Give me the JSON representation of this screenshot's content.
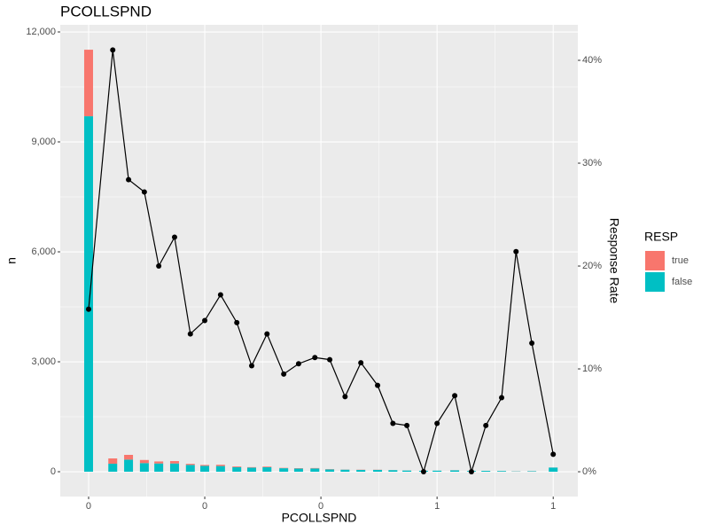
{
  "chart_data": {
    "type": "bar",
    "stacked": true,
    "title": "PCOLLSPND",
    "xlabel": "PCOLLSPND",
    "ylabel": "n",
    "y2label": "Response Rate",
    "legend_title": "RESP",
    "legend_position": "right",
    "grid": true,
    "x": [
      0,
      0.052,
      0.086,
      0.12,
      0.151,
      0.185,
      0.219,
      0.25,
      0.284,
      0.319,
      0.351,
      0.384,
      0.42,
      0.452,
      0.487,
      0.519,
      0.552,
      0.586,
      0.622,
      0.655,
      0.685,
      0.721,
      0.75,
      0.788,
      0.824,
      0.855,
      0.889,
      0.92,
      0.954,
      1.0
    ],
    "series": [
      {
        "name": "true",
        "color": "#F8766D",
        "values": [
          1815,
          145,
          130,
          85,
          55,
          65,
          30,
          25,
          35,
          20,
          13,
          18,
          10,
          10,
          11,
          8,
          4,
          6,
          5,
          2,
          2,
          0,
          1,
          3,
          0,
          1,
          1,
          3,
          2,
          2
        ]
      },
      {
        "name": "false",
        "color": "#00BFC4",
        "values": [
          9700,
          218,
          330,
          235,
          225,
          225,
          185,
          160,
          155,
          125,
          112,
          122,
          95,
          85,
          89,
          62,
          56,
          49,
          50,
          43,
          33,
          25,
          29,
          37,
          20,
          24,
          19,
          9,
          13,
          113
        ]
      },
      {
        "type": "line",
        "axis": "y2",
        "color": "#000000",
        "values": [
          15.8,
          41.0,
          28.4,
          27.2,
          20.0,
          22.8,
          13.4,
          14.7,
          17.2,
          14.5,
          10.3,
          13.4,
          9.5,
          10.5,
          11.1,
          10.9,
          7.3,
          10.6,
          8.4,
          4.7,
          4.5,
          0,
          4.7,
          7.4,
          0,
          4.5,
          7.2,
          21.4,
          12.5,
          1.7
        ]
      }
    ],
    "xlim": [
      -0.061,
      1.053
    ],
    "xticks": [
      0,
      {
        "value": 0.25,
        "label": "0"
      },
      {
        "value": 0.5,
        "label": "0"
      },
      {
        "value": 0.75,
        "label": "1"
      },
      1
    ],
    "ylim": [
      -677,
      12194
    ],
    "yticks": [
      0,
      {
        "value": 3000,
        "label": "3,000"
      },
      {
        "value": 6000,
        "label": "6,000"
      },
      {
        "value": 9000,
        "label": "9,000"
      },
      {
        "value": 12000,
        "label": "12,000"
      }
    ],
    "y2lim": [
      -2.41,
      43.45
    ],
    "y2ticks": [
      {
        "value": 0,
        "label": "0%"
      },
      {
        "value": 10,
        "label": "10%"
      },
      {
        "value": 20,
        "label": "20%"
      },
      {
        "value": 30,
        "label": "30%"
      },
      {
        "value": 40,
        "label": "40%"
      }
    ]
  }
}
